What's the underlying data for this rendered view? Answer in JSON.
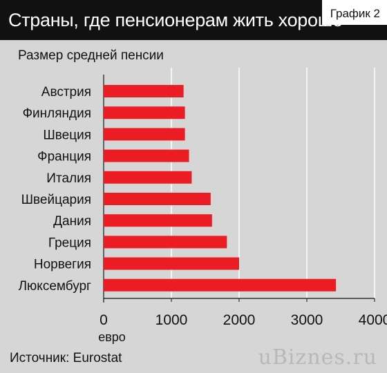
{
  "header": {
    "title": "Страны, где пенсионерам жить хорошо",
    "badge": "График 2"
  },
  "subtitle": "Размер средней пенсии",
  "source": "Источник: Eurostat",
  "watermark": "uBiznes.ru",
  "colors": {
    "bar": "#ec1c24",
    "header_bg": "#111111",
    "background": "#d6d6d6",
    "grid": "#ffffff"
  },
  "chart_data": {
    "type": "bar",
    "orientation": "horizontal",
    "categories": [
      "Австрия",
      "Финляндия",
      "Швеция",
      "Франция",
      "Италия",
      "Швейцария",
      "Дания",
      "Греция",
      "Норвегия",
      "Люксембург"
    ],
    "values": [
      1180,
      1200,
      1200,
      1260,
      1300,
      1580,
      1600,
      1820,
      2000,
      3430
    ],
    "xlim": [
      0,
      4000
    ],
    "xticks": [
      0,
      1000,
      2000,
      3000,
      4000
    ],
    "xlabel": "евро",
    "grid": true
  }
}
